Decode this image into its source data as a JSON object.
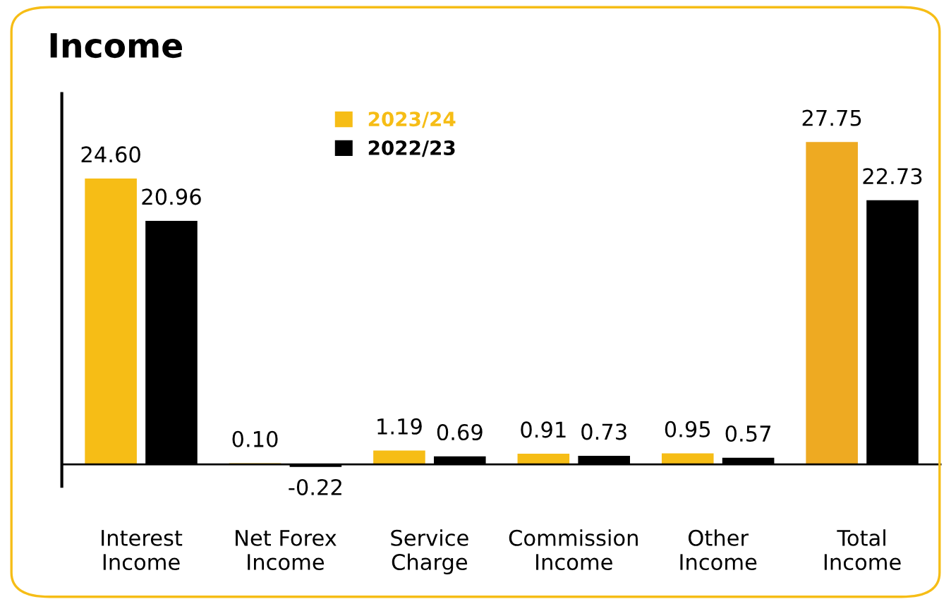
{
  "chart_data": {
    "type": "bar",
    "title": "Income",
    "categories": [
      "Interest Income",
      "Net Forex Income",
      "Service Charge",
      "Commission Income",
      "Other Income",
      "Total Income"
    ],
    "series": [
      {
        "name": "2023/24",
        "color": "#f6bd16",
        "colors": [
          "#f6bd16",
          "#f6bd16",
          "#f6bd16",
          "#f6bd16",
          "#f6bd16",
          "#eeaa22"
        ],
        "values": [
          24.6,
          0.1,
          1.19,
          0.91,
          0.95,
          27.75
        ],
        "value_labels": [
          "24.60",
          "0.10",
          "1.19",
          "0.91",
          "0.95",
          "27.75"
        ]
      },
      {
        "name": "2022/23",
        "color": "#000000",
        "values": [
          20.96,
          -0.22,
          0.69,
          0.73,
          0.57,
          22.73
        ],
        "value_labels": [
          "20.96",
          "-0.22",
          "0.69",
          "0.73",
          "0.57",
          "22.73"
        ]
      }
    ],
    "legend": "top",
    "tick_labels": "x",
    "grid": false
  }
}
